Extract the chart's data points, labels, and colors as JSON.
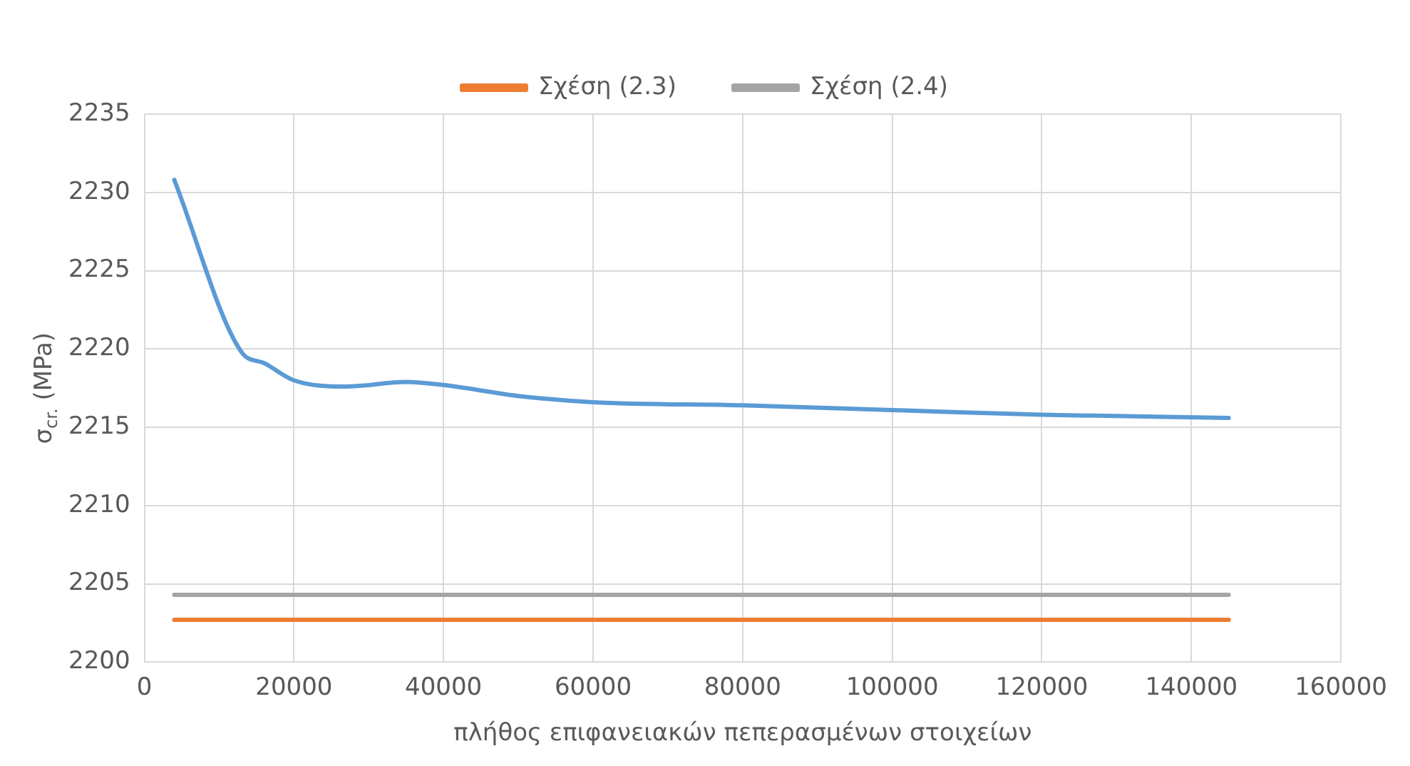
{
  "chart_data": {
    "type": "line",
    "xlabel": "πλήθος επιφανειακών πεπερασμένων στοιχείων",
    "ylabel": "σ$_{cr.}$ (MPa)",
    "xlim": [
      0,
      160000
    ],
    "xticks": [
      0,
      20000,
      40000,
      60000,
      80000,
      100000,
      120000,
      140000,
      160000
    ],
    "ylim": [
      2200,
      2235
    ],
    "yticks": [
      2200,
      2205,
      2210,
      2215,
      2220,
      2225,
      2230,
      2235
    ],
    "grid": true,
    "legend": "top",
    "marker": "none",
    "line_style": "solid",
    "series": [
      {
        "color": "#5b9bd5",
        "x": [
          4000,
          13000,
          16000,
          20000,
          27000,
          35000,
          40000,
          50000,
          60000,
          80000,
          100000,
          120000,
          145000
        ],
        "values": [
          2230.8,
          2219.8,
          2219.1,
          2218.0,
          2217.6,
          2217.9,
          2217.7,
          2217.0,
          2216.6,
          2216.4,
          2216.1,
          2215.8,
          2215.6
        ]
      },
      {
        "name": "Σχέση (2.3)",
        "color": "#ed7d31",
        "x": [
          4000,
          145000
        ],
        "values": [
          2202.7,
          2202.7
        ]
      },
      {
        "name": "Σχέση (2.4)",
        "color": "#a5a5a5",
        "x": [
          4000,
          145000
        ],
        "values": [
          2204.3,
          2204.3
        ]
      }
    ]
  }
}
